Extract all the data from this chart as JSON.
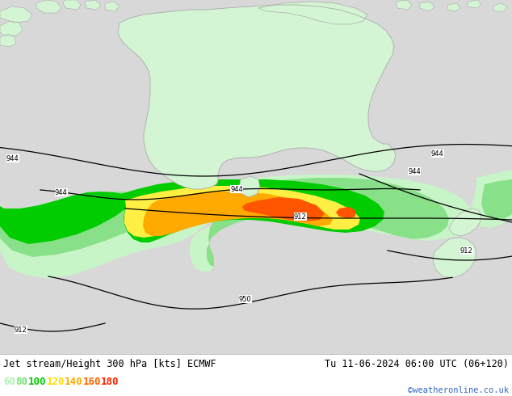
{
  "title_left": "Jet stream/Height 300 hPa [kts] ECMWF",
  "title_right": "Tu 11-06-2024 06:00 UTC (06+120)",
  "credit": "©weatheronline.co.uk",
  "legend_values": [
    "60",
    "80",
    "100",
    "120",
    "140",
    "160",
    "180"
  ],
  "legend_colors": [
    "#b4f0b4",
    "#78e078",
    "#00cc00",
    "#ffdd00",
    "#ffaa00",
    "#ff6600",
    "#ff2200"
  ],
  "bg_color": "#d8d8d8",
  "land_color": "#d4f5d4",
  "land_border": "#aaaaaa",
  "contour_color": "#000000",
  "title_fontsize": 8.5,
  "legend_fontsize": 9,
  "credit_color": "#3366cc",
  "bottom_bar_color": "#ffffff",
  "wind_60_color": "#c8f5c8",
  "wind_80_color": "#88e088",
  "wind_100_color": "#00cc00",
  "wind_120_color": "#ffee44",
  "wind_140_color": "#ffaa00",
  "wind_160_color": "#ff5500",
  "wind_180_color": "#ff0000"
}
